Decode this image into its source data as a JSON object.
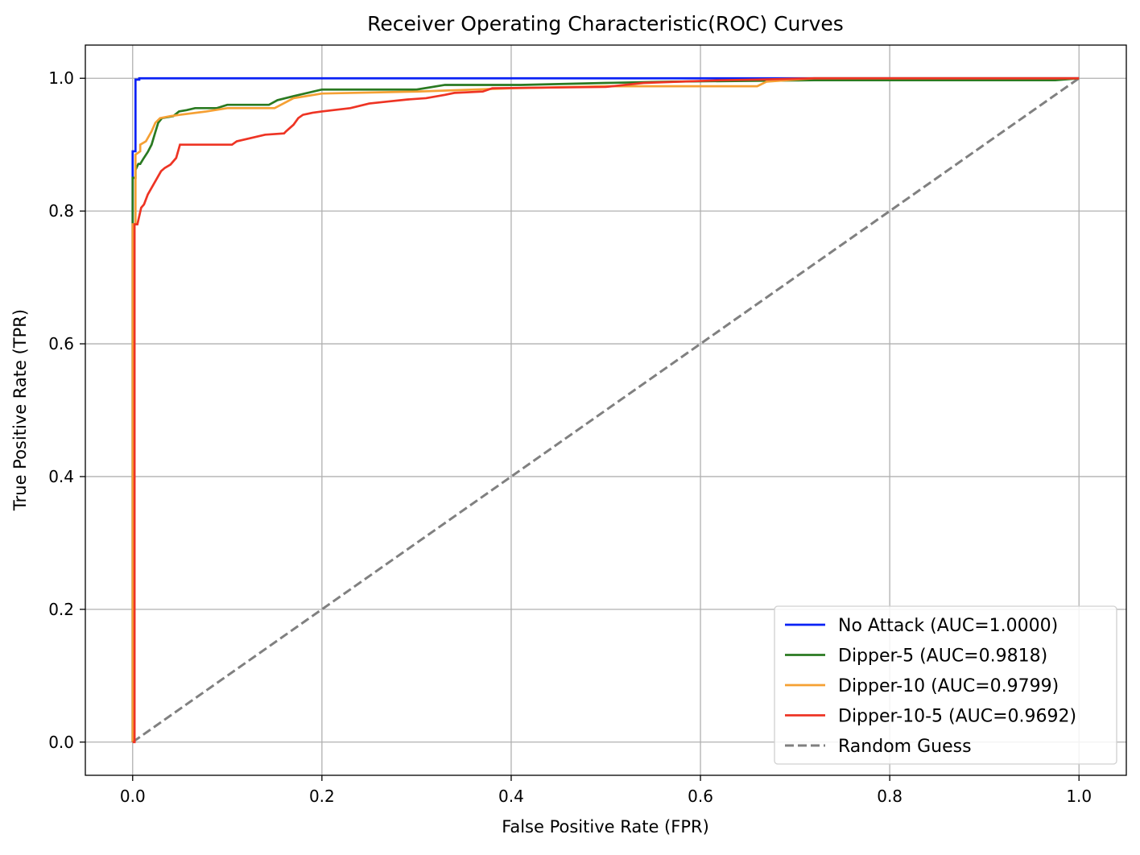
{
  "chart_data": {
    "type": "line",
    "title": "Receiver Operating Characteristic(ROC) Curves",
    "xlabel": "False Positive Rate (FPR)",
    "ylabel": "True Positive Rate (TPR)",
    "xlim": [
      -0.05,
      1.05
    ],
    "ylim": [
      -0.05,
      1.05
    ],
    "xticks": [
      0.0,
      0.2,
      0.4,
      0.6,
      0.8,
      1.0
    ],
    "yticks": [
      0.0,
      0.2,
      0.4,
      0.6,
      0.8,
      1.0
    ],
    "xtick_labels": [
      "0.0",
      "0.2",
      "0.4",
      "0.6",
      "0.8",
      "1.0"
    ],
    "ytick_labels": [
      "0.0",
      "0.2",
      "0.4",
      "0.6",
      "0.8",
      "1.0"
    ],
    "grid": true,
    "legend_position": "lower right",
    "series": [
      {
        "name": "No Attack (AUC=1.0000)",
        "color": "#0a22f5",
        "dashed": false,
        "x": [
          0.0,
          0.0,
          0.003,
          0.003,
          0.007,
          0.007,
          0.011,
          1.0
        ],
        "y": [
          0.0,
          0.89,
          0.89,
          0.998,
          0.998,
          1.0,
          1.0,
          1.0
        ]
      },
      {
        "name": "Dipper-5 (AUC=0.9818)",
        "color": "#2a7a21",
        "dashed": false,
        "x": [
          0.0,
          0.0,
          0.003,
          0.003,
          0.006,
          0.008,
          0.011,
          0.016,
          0.02,
          0.024,
          0.027,
          0.031,
          0.043,
          0.049,
          0.057,
          0.066,
          0.089,
          0.1,
          0.144,
          0.153,
          0.17,
          0.2,
          0.3,
          0.33,
          0.41,
          0.5,
          0.57,
          0.72,
          0.975,
          1.0
        ],
        "y": [
          0.0,
          0.85,
          0.85,
          0.862,
          0.871,
          0.871,
          0.878,
          0.889,
          0.9,
          0.919,
          0.933,
          0.94,
          0.943,
          0.95,
          0.952,
          0.955,
          0.955,
          0.96,
          0.96,
          0.967,
          0.973,
          0.983,
          0.983,
          0.99,
          0.99,
          0.993,
          0.995,
          0.997,
          0.997,
          1.0
        ]
      },
      {
        "name": "Dipper-10 (AUC=0.9799)",
        "color": "#f5a033",
        "dashed": false,
        "x": [
          0.0,
          0.0,
          0.003,
          0.003,
          0.008,
          0.008,
          0.014,
          0.02,
          0.024,
          0.029,
          0.04,
          0.05,
          0.078,
          0.1,
          0.15,
          0.17,
          0.2,
          0.3,
          0.4,
          0.5,
          0.66,
          0.67,
          0.7,
          0.72,
          1.0
        ],
        "y": [
          0.0,
          0.78,
          0.78,
          0.885,
          0.89,
          0.9,
          0.905,
          0.92,
          0.933,
          0.94,
          0.943,
          0.945,
          0.95,
          0.955,
          0.955,
          0.97,
          0.977,
          0.98,
          0.985,
          0.988,
          0.988,
          0.995,
          0.998,
          1.0,
          1.0
        ]
      },
      {
        "name": "Dipper-10-5 (AUC=0.9692)",
        "color": "#ee3424",
        "dashed": false,
        "x": [
          0.0,
          0.002,
          0.002,
          0.005,
          0.009,
          0.012,
          0.016,
          0.02,
          0.026,
          0.03,
          0.034,
          0.04,
          0.046,
          0.05,
          0.105,
          0.11,
          0.125,
          0.14,
          0.16,
          0.162,
          0.17,
          0.175,
          0.18,
          0.19,
          0.2,
          0.23,
          0.25,
          0.27,
          0.29,
          0.31,
          0.33,
          0.34,
          0.37,
          0.38,
          0.5,
          0.54,
          0.62,
          0.66,
          0.72,
          1.0
        ],
        "y": [
          0.0,
          0.0,
          0.78,
          0.78,
          0.805,
          0.81,
          0.825,
          0.835,
          0.85,
          0.86,
          0.865,
          0.87,
          0.88,
          0.9,
          0.9,
          0.905,
          0.91,
          0.915,
          0.917,
          0.92,
          0.93,
          0.94,
          0.945,
          0.948,
          0.95,
          0.955,
          0.962,
          0.965,
          0.968,
          0.97,
          0.975,
          0.978,
          0.98,
          0.985,
          0.987,
          0.993,
          0.997,
          0.998,
          1.0,
          1.0
        ]
      },
      {
        "name": "Random Guess",
        "color": "#808080",
        "dashed": true,
        "x": [
          0.0,
          1.0
        ],
        "y": [
          0.0,
          1.0
        ]
      }
    ]
  }
}
